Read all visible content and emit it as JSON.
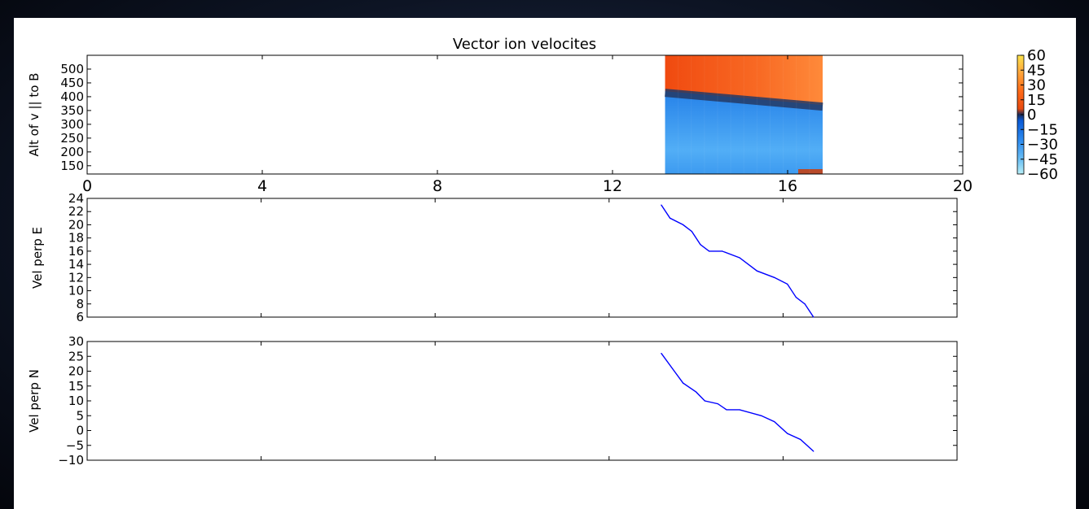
{
  "chart_data": [
    {
      "type": "heatmap",
      "title": "Vector ion velocites",
      "ylabel": "Alt of v || to B",
      "xlim": [
        0,
        20
      ],
      "ylim": [
        120,
        550
      ],
      "x_ticks": [
        "0",
        "4",
        "8",
        "12",
        "16",
        "20"
      ],
      "y_ticks": [
        "150",
        "200",
        "250",
        "300",
        "350",
        "400",
        "450",
        "500"
      ],
      "data_x_range": [
        13.2,
        16.8
      ],
      "boundary_left_alt": 420,
      "boundary_right_alt": 370,
      "colorbar": {
        "ticks": [
          "60",
          "45",
          "30",
          "15",
          "0",
          "−15",
          "−30",
          "−45",
          "−60"
        ],
        "values": [
          60,
          45,
          30,
          15,
          0,
          -15,
          -30,
          -45,
          -60
        ]
      }
    },
    {
      "type": "line",
      "ylabel": "Vel perp E",
      "xlim": [
        0,
        20
      ],
      "ylim": [
        6,
        24
      ],
      "y_ticks": [
        "6",
        "8",
        "10",
        "12",
        "14",
        "16",
        "18",
        "20",
        "22",
        "24"
      ],
      "x": [
        13.2,
        13.4,
        13.7,
        13.9,
        14.1,
        14.3,
        14.6,
        15.0,
        15.4,
        15.8,
        16.1,
        16.3,
        16.5,
        16.7
      ],
      "y": [
        23,
        21,
        20,
        19,
        17,
        16,
        16,
        15,
        13,
        12,
        11,
        9,
        8,
        6
      ],
      "color": "#0000ff"
    },
    {
      "type": "line",
      "ylabel": "Vel perp N",
      "xlim": [
        0,
        20
      ],
      "ylim": [
        -10,
        30
      ],
      "y_ticks": [
        "30",
        "25",
        "20",
        "15",
        "10",
        "5",
        "0",
        "−5",
        "−10"
      ],
      "x": [
        13.2,
        13.5,
        13.7,
        14.0,
        14.2,
        14.5,
        14.7,
        15.0,
        15.5,
        15.8,
        16.1,
        16.4,
        16.7
      ],
      "y": [
        26,
        20,
        16,
        13,
        10,
        9,
        7,
        7,
        5,
        3,
        -1,
        -3,
        -7
      ],
      "color": "#0000ff"
    }
  ]
}
